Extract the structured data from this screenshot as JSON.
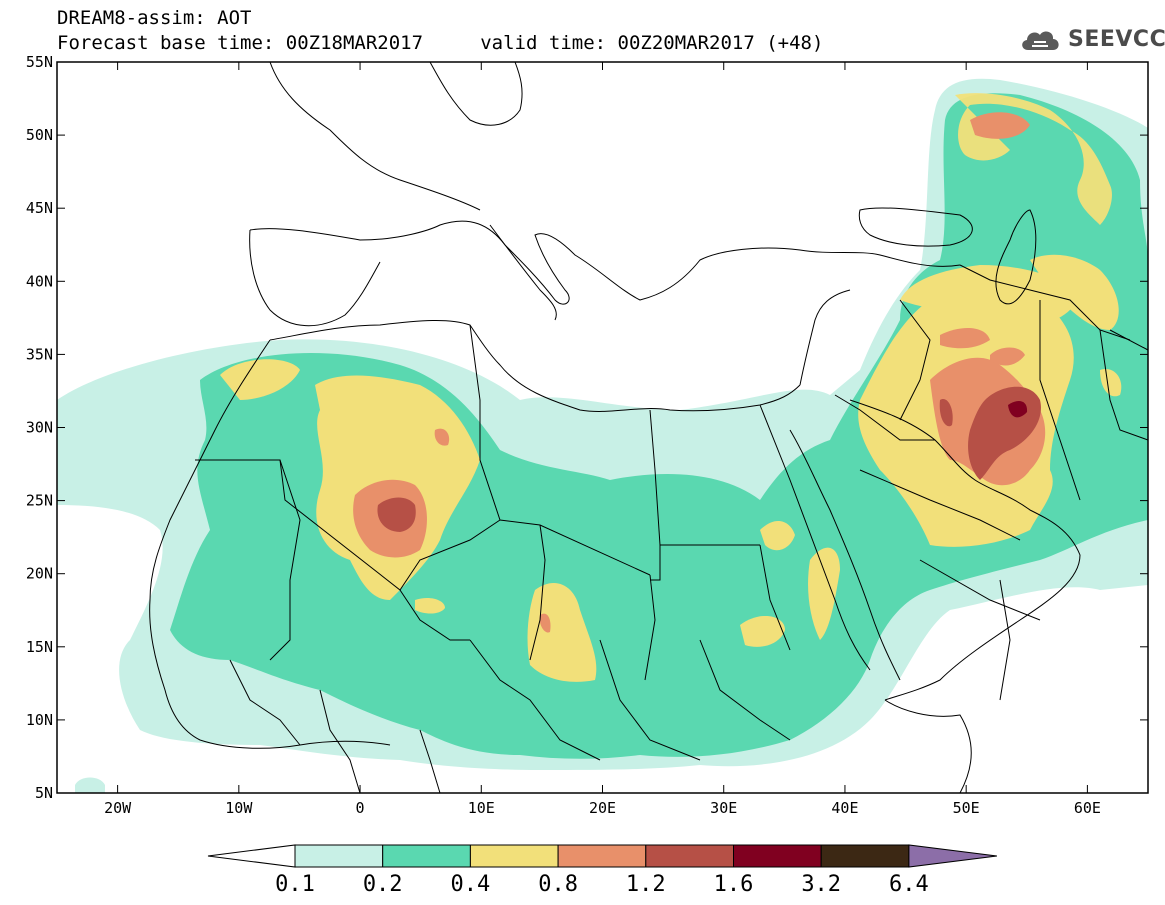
{
  "header": {
    "title_line1": "DREAM8-assim: AOT",
    "title_line2": "Forecast base time: 00Z18MAR2017     valid time: 00Z20MAR2017 (+48)",
    "logo_text": "SEEVCCC",
    "logo_icon": "cloud-icon"
  },
  "map": {
    "region": "North Africa, Middle East and Southern Europe",
    "lon_range": [
      -25,
      65
    ],
    "lat_range": [
      5,
      55
    ],
    "y_axis_labels": [
      "55N",
      "50N",
      "45N",
      "40N",
      "35N",
      "30N",
      "25N",
      "20N",
      "15N",
      "10N",
      "5N"
    ],
    "y_axis_values": [
      55,
      50,
      45,
      40,
      35,
      30,
      25,
      20,
      15,
      10,
      5
    ],
    "x_axis_labels": [
      "20W",
      "10W",
      "0",
      "10E",
      "20E",
      "30E",
      "40E",
      "50E",
      "60E"
    ],
    "x_axis_values": [
      -20,
      -10,
      0,
      10,
      20,
      30,
      40,
      50,
      60
    ]
  },
  "colorbar": {
    "labels": [
      "0.1",
      "0.2",
      "0.4",
      "0.8",
      "1.2",
      "1.6",
      "3.2",
      "6.4"
    ],
    "colors": [
      "#c8f0e6",
      "#5ad8b0",
      "#f2e07a",
      "#e8906a",
      "#b65046",
      "#800020",
      "#3c2814",
      "#8c6ea8"
    ]
  }
}
